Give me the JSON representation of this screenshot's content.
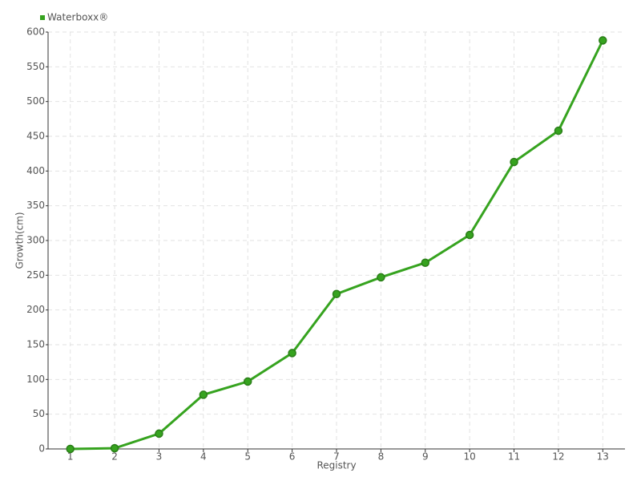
{
  "chart_data": {
    "type": "line",
    "x_label": "Registry",
    "y_label": "Growth(cm)",
    "categories": [
      "1",
      "2",
      "3",
      "4",
      "5",
      "6",
      "7",
      "8",
      "9",
      "10",
      "11",
      "12",
      "13"
    ],
    "series": [
      {
        "name": "Waterboxx®",
        "color": "#36a31f",
        "values": [
          0,
          1,
          22,
          78,
          97,
          138,
          223,
          247,
          268,
          308,
          413,
          458,
          588
        ]
      }
    ],
    "ylim": [
      0,
      600
    ],
    "yticks": [
      0,
      50,
      100,
      150,
      200,
      250,
      300,
      350,
      400,
      450,
      500,
      550,
      600
    ],
    "grid": true,
    "legend": "top-left"
  }
}
